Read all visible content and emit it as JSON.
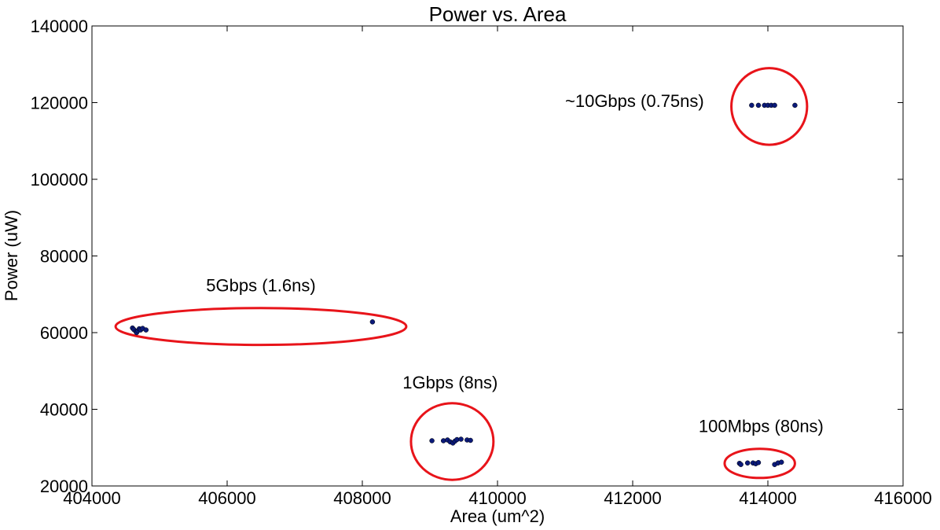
{
  "chart_data": {
    "type": "scatter",
    "title": "Power vs. Area",
    "xlabel": "Area (um^2)",
    "ylabel": "Power (uW)",
    "xlim": [
      404000,
      416000
    ],
    "ylim": [
      20000,
      140000
    ],
    "xticks": [
      404000,
      406000,
      408000,
      410000,
      412000,
      414000,
      416000
    ],
    "yticks": [
      20000,
      40000,
      60000,
      80000,
      100000,
      120000,
      140000
    ],
    "grid": false,
    "point_color": "#0b1a7a",
    "circle_color": "#e8141a",
    "series": [
      {
        "points": [
          [
            404600,
            61200
          ],
          [
            404620,
            60800
          ],
          [
            404650,
            60300
          ],
          [
            404660,
            60000
          ],
          [
            404680,
            60500
          ],
          [
            404700,
            61000
          ],
          [
            404720,
            60700
          ],
          [
            404750,
            61100
          ],
          [
            404800,
            60700
          ],
          [
            408150,
            62800
          ],
          [
            409030,
            31800
          ],
          [
            409200,
            31800
          ],
          [
            409260,
            32000
          ],
          [
            409300,
            31500
          ],
          [
            409340,
            31200
          ],
          [
            409370,
            31700
          ],
          [
            409400,
            32100
          ],
          [
            409460,
            32200
          ],
          [
            409550,
            32000
          ],
          [
            409600,
            31900
          ],
          [
            413580,
            25900
          ],
          [
            413600,
            25600
          ],
          [
            413700,
            26000
          ],
          [
            413780,
            26000
          ],
          [
            413820,
            25800
          ],
          [
            413860,
            26100
          ],
          [
            414100,
            25600
          ],
          [
            414150,
            26000
          ],
          [
            414200,
            26200
          ],
          [
            413760,
            119300
          ],
          [
            413860,
            119300
          ],
          [
            413950,
            119300
          ],
          [
            414000,
            119300
          ],
          [
            414050,
            119300
          ],
          [
            414100,
            119300
          ],
          [
            414400,
            119300
          ]
        ]
      }
    ],
    "annotations": [
      {
        "text": "~10Gbps (0.75ns)",
        "x": 411000,
        "y": 118900,
        "anchor": "start"
      },
      {
        "text": "5Gbps (1.6ns)",
        "x": 406500,
        "y": 70800,
        "anchor": "middle"
      },
      {
        "text": "1Gbps (8ns)",
        "x": 409300,
        "y": 45400,
        "anchor": "middle"
      },
      {
        "text": "100Mbps (80ns)",
        "x": 413900,
        "y": 34100,
        "anchor": "middle"
      }
    ],
    "highlight_ellipses": [
      {
        "cx": 414020,
        "cy": 119000,
        "rx": 560,
        "ry": 10000
      },
      {
        "cx": 406500,
        "cy": 61600,
        "rx": 2150,
        "ry": 4800
      },
      {
        "cx": 409330,
        "cy": 31600,
        "rx": 610,
        "ry": 10000
      },
      {
        "cx": 413880,
        "cy": 25900,
        "rx": 520,
        "ry": 3800
      }
    ]
  }
}
